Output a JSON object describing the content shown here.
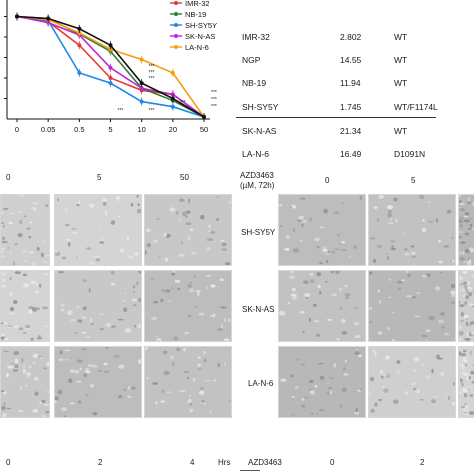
{
  "chart_data": {
    "type": "line",
    "title": "",
    "xlabel": "",
    "ylabel": "",
    "x_tick_labels": [
      "0",
      "0.05",
      "0.5",
      "5",
      "10",
      "20",
      "50"
    ],
    "legend": [
      {
        "name": "IMR-32",
        "color": "#e53935",
        "marker": "square"
      },
      {
        "name": "NB-19",
        "color": "#2e7d32",
        "marker": "triangle"
      },
      {
        "name": "SH-SY5Y",
        "color": "#1e88e5",
        "marker": "triangle-down"
      },
      {
        "name": "SK-N-AS",
        "color": "#c026d3",
        "marker": "circle"
      },
      {
        "name": "LA-N-6",
        "color": "#f59e0b",
        "marker": "circle"
      }
    ],
    "series": [
      {
        "name": "IMR-32",
        "color": "#e53935",
        "values": [
          100,
          95,
          72,
          40,
          28,
          24,
          2
        ]
      },
      {
        "name": "NB-19",
        "color": "#2e7d32",
        "values": [
          100,
          98,
          83,
          66,
          30,
          18,
          2
        ]
      },
      {
        "name": "SH-SY5Y",
        "color": "#1e88e5",
        "values": [
          100,
          96,
          45,
          35,
          17,
          12,
          2
        ]
      },
      {
        "name": "SK-N-AS",
        "color": "#c026d3",
        "values": [
          100,
          94,
          82,
          50,
          30,
          24,
          2
        ]
      },
      {
        "name": "LA-N-6",
        "color": "#f59e0b",
        "values": [
          100,
          97,
          84,
          68,
          58,
          45,
          2
        ]
      },
      {
        "name": "black",
        "color": "#111111",
        "values": [
          100,
          98,
          88,
          72,
          35,
          20,
          2
        ]
      }
    ],
    "significance_marks": "***",
    "ylim": [
      0,
      120
    ]
  },
  "table": {
    "rows": [
      {
        "cell_line": "IMR-32",
        "value": "2.802",
        "alk": "WT"
      },
      {
        "cell_line": "NGP",
        "value": "14.55",
        "alk": "WT"
      },
      {
        "cell_line": "NB-19",
        "value": "11.94",
        "alk": "WT"
      },
      {
        "cell_line": "SH-SY5Y",
        "value": "1.745",
        "alk": "WT/F1174L"
      },
      {
        "cell_line": "SK-N-AS",
        "value": "21.34",
        "alk": "WT"
      },
      {
        "cell_line": "LA-N-6",
        "value": "16.49",
        "alk": "D1091N"
      }
    ]
  },
  "micrographs": {
    "left_conc_labels": [
      "0",
      "5",
      "50"
    ],
    "right_header": "AZD3463",
    "right_header_sub": "(µM, 72h)",
    "right_conc_labels": [
      "0",
      "5"
    ],
    "row_labels": [
      "SH-SY5Y",
      "SK-N-AS",
      "LA-N-6"
    ]
  },
  "bottom": {
    "left_labels": [
      "0",
      "2",
      "4"
    ],
    "hrs_label": "Hrs",
    "right_header": "AZD3463",
    "right_labels": [
      "0",
      "2"
    ]
  }
}
